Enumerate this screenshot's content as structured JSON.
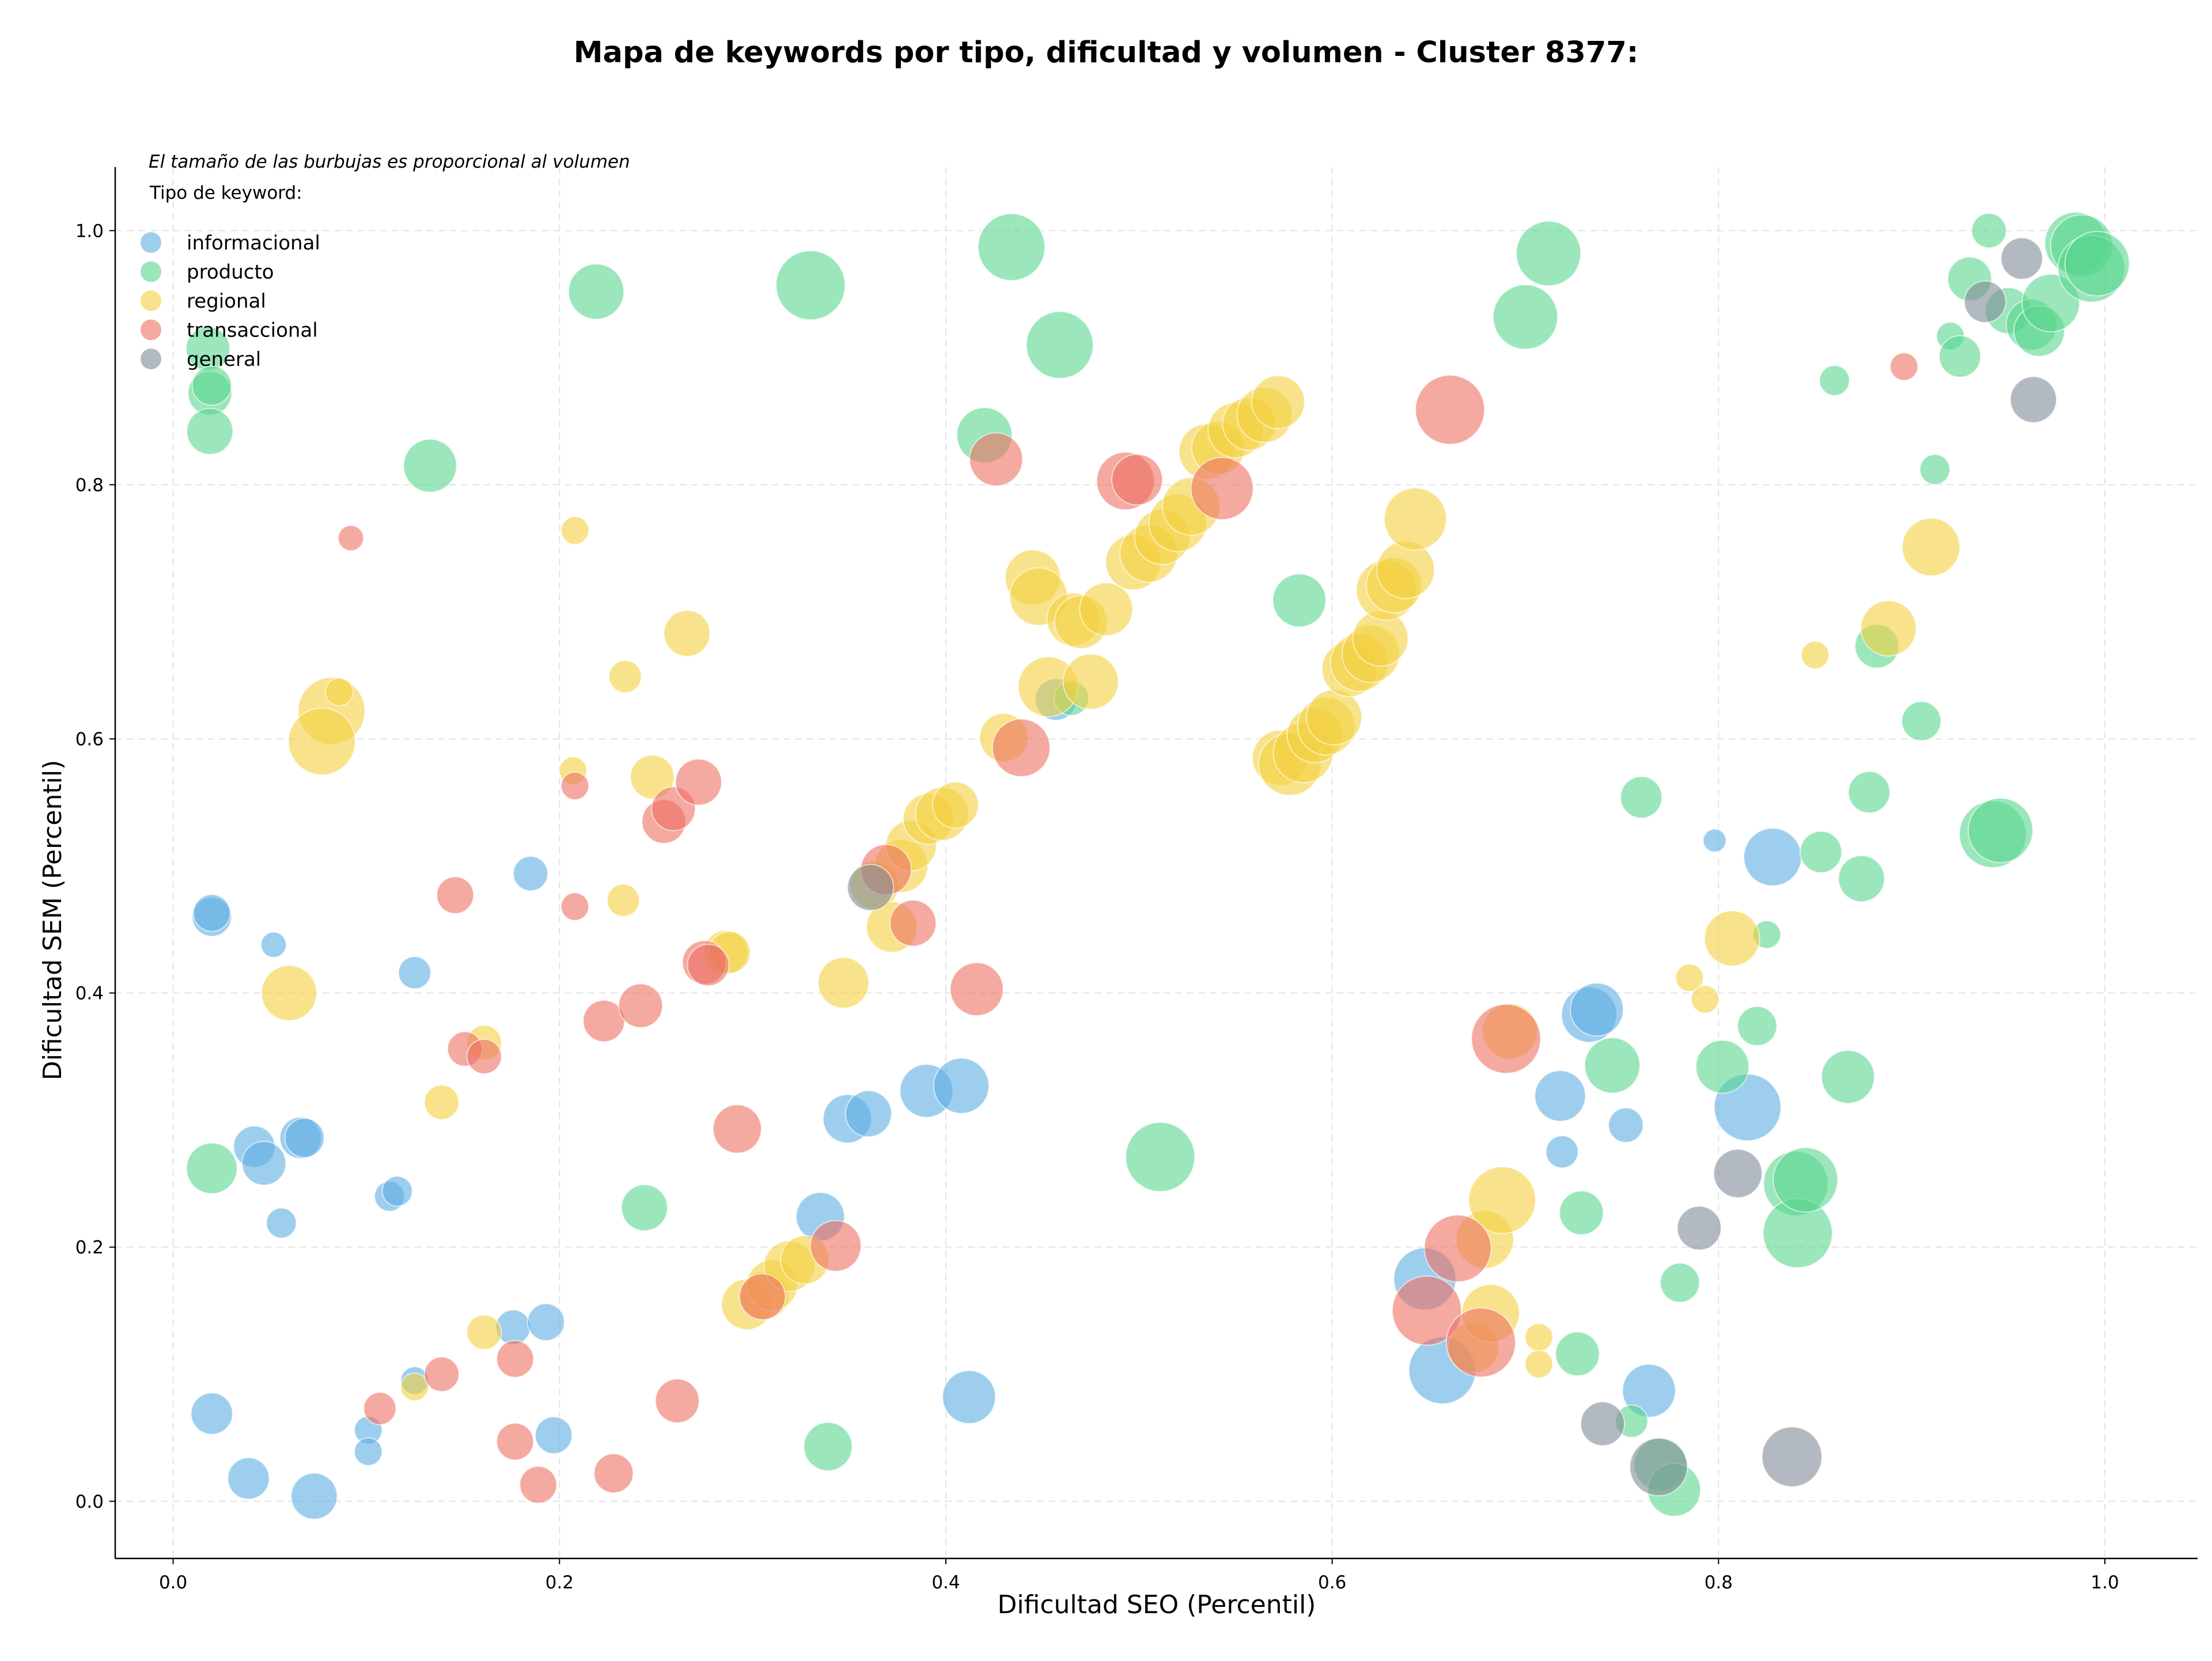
{
  "chart_data": {
    "type": "scatter",
    "title": "Mapa de keywords por tipo, dificultad y volumen - Cluster 8377:",
    "xlabel": "Dificultad SEO (Percentil)",
    "ylabel": "Dificultad SEM (Percentil)",
    "xlim": [
      -0.03,
      1.048
    ],
    "ylim": [
      -0.045,
      1.05
    ],
    "xticks": [
      "0.0",
      "0.2",
      "0.4",
      "0.6",
      "0.8",
      "1.0"
    ],
    "yticks": [
      "0.0",
      "0.2",
      "0.4",
      "0.6",
      "0.8",
      "1.0"
    ],
    "grid": true,
    "size_note": "El tamaño de las burbujas es proporcional al volumen",
    "legend_title": "Tipo de keyword:",
    "legend_position": "top-left",
    "series": [
      {
        "name": "informacional",
        "color": "#5DADE2",
        "points": [
          [
            0.02,
            0.46,
            34
          ],
          [
            0.02,
            0.463,
            32
          ],
          [
            0.052,
            0.438,
            22
          ],
          [
            0.125,
            0.416,
            28
          ],
          [
            0.185,
            0.494,
            30
          ],
          [
            0.042,
            0.279,
            36
          ],
          [
            0.047,
            0.266,
            38
          ],
          [
            0.066,
            0.286,
            36
          ],
          [
            0.068,
            0.286,
            34
          ],
          [
            0.056,
            0.219,
            26
          ],
          [
            0.112,
            0.24,
            26
          ],
          [
            0.116,
            0.244,
            26
          ],
          [
            0.02,
            0.069,
            36
          ],
          [
            0.039,
            0.018,
            36
          ],
          [
            0.073,
            0.004,
            40
          ],
          [
            0.101,
            0.056,
            24
          ],
          [
            0.101,
            0.039,
            24
          ],
          [
            0.125,
            0.095,
            24
          ],
          [
            0.176,
            0.137,
            30
          ],
          [
            0.193,
            0.141,
            32
          ],
          [
            0.197,
            0.052,
            32
          ],
          [
            0.335,
            0.224,
            42
          ],
          [
            0.349,
            0.301,
            42
          ],
          [
            0.36,
            0.305,
            40
          ],
          [
            0.39,
            0.323,
            46
          ],
          [
            0.408,
            0.327,
            48
          ],
          [
            0.412,
            0.082,
            46
          ],
          [
            0.457,
            0.631,
            36
          ],
          [
            0.648,
            0.175,
            54
          ],
          [
            0.657,
            0.103,
            58
          ],
          [
            0.718,
            0.319,
            44
          ],
          [
            0.719,
            0.275,
            28
          ],
          [
            0.733,
            0.383,
            48
          ],
          [
            0.737,
            0.387,
            46
          ],
          [
            0.752,
            0.296,
            30
          ],
          [
            0.764,
            0.087,
            46
          ],
          [
            0.798,
            0.52,
            20
          ],
          [
            0.815,
            0.31,
            58
          ],
          [
            0.828,
            0.507,
            50
          ]
        ]
      },
      {
        "name": "producto",
        "color": "#58D68D",
        "points": [
          [
            0.018,
            0.907,
            38
          ],
          [
            0.019,
            0.872,
            38
          ],
          [
            0.02,
            0.878,
            34
          ],
          [
            0.019,
            0.842,
            40
          ],
          [
            0.133,
            0.815,
            46
          ],
          [
            0.219,
            0.952,
            48
          ],
          [
            0.33,
            0.957,
            60
          ],
          [
            0.434,
            0.987,
            58
          ],
          [
            0.459,
            0.91,
            58
          ],
          [
            0.42,
            0.839,
            48
          ],
          [
            0.583,
            0.709,
            46
          ],
          [
            0.7,
            0.932,
            56
          ],
          [
            0.712,
            0.982,
            56
          ],
          [
            0.02,
            0.262,
            44
          ],
          [
            0.244,
            0.231,
            40
          ],
          [
            0.339,
            0.043,
            42
          ],
          [
            0.465,
            0.632,
            30
          ],
          [
            0.511,
            0.271,
            60
          ],
          [
            0.729,
            0.227,
            38
          ],
          [
            0.727,
            0.116,
            38
          ],
          [
            0.745,
            0.343,
            48
          ],
          [
            0.755,
            0.063,
            28
          ],
          [
            0.76,
            0.554,
            36
          ],
          [
            0.77,
            0.029,
            46
          ],
          [
            0.777,
            0.009,
            46
          ],
          [
            0.78,
            0.172,
            34
          ],
          [
            0.802,
            0.342,
            46
          ],
          [
            0.82,
            0.374,
            34
          ],
          [
            0.825,
            0.446,
            24
          ],
          [
            0.84,
            0.25,
            56
          ],
          [
            0.841,
            0.211,
            60
          ],
          [
            0.845,
            0.253,
            56
          ],
          [
            0.853,
            0.511,
            36
          ],
          [
            0.86,
            0.882,
            26
          ],
          [
            0.867,
            0.334,
            46
          ],
          [
            0.874,
            0.49,
            40
          ],
          [
            0.878,
            0.558,
            36
          ],
          [
            0.882,
            0.673,
            38
          ],
          [
            0.905,
            0.614,
            34
          ],
          [
            0.912,
            0.812,
            26
          ],
          [
            0.92,
            0.917,
            24
          ],
          [
            0.925,
            0.901,
            36
          ],
          [
            0.93,
            0.962,
            38
          ],
          [
            0.94,
            1.0,
            30
          ],
          [
            0.942,
            0.525,
            58
          ],
          [
            0.946,
            0.528,
            56
          ],
          [
            0.95,
            0.937,
            40
          ],
          [
            0.962,
            0.926,
            44
          ],
          [
            0.966,
            0.921,
            44
          ],
          [
            0.972,
            0.943,
            50
          ],
          [
            0.985,
            0.99,
            54
          ],
          [
            0.988,
            0.988,
            54
          ],
          [
            0.993,
            0.97,
            58
          ],
          [
            0.996,
            0.974,
            56
          ]
        ]
      },
      {
        "name": "regional",
        "color": "#F4D03F",
        "points": [
          [
            0.082,
            0.622,
            58
          ],
          [
            0.077,
            0.598,
            58
          ],
          [
            0.086,
            0.637,
            24
          ],
          [
            0.06,
            0.4,
            48
          ],
          [
            0.208,
            0.764,
            24
          ],
          [
            0.234,
            0.649,
            28
          ],
          [
            0.266,
            0.683,
            40
          ],
          [
            0.207,
            0.575,
            24
          ],
          [
            0.248,
            0.57,
            38
          ],
          [
            0.233,
            0.473,
            28
          ],
          [
            0.286,
            0.432,
            38
          ],
          [
            0.288,
            0.432,
            36
          ],
          [
            0.161,
            0.361,
            30
          ],
          [
            0.139,
            0.314,
            30
          ],
          [
            0.161,
            0.133,
            30
          ],
          [
            0.125,
            0.09,
            24
          ],
          [
            0.297,
            0.155,
            44
          ],
          [
            0.306,
            0.162,
            42
          ],
          [
            0.31,
            0.17,
            44
          ],
          [
            0.319,
            0.185,
            44
          ],
          [
            0.327,
            0.19,
            42
          ],
          [
            0.347,
            0.408,
            44
          ],
          [
            0.363,
            0.485,
            42
          ],
          [
            0.372,
            0.452,
            44
          ],
          [
            0.377,
            0.5,
            46
          ],
          [
            0.382,
            0.516,
            44
          ],
          [
            0.391,
            0.537,
            44
          ],
          [
            0.398,
            0.541,
            46
          ],
          [
            0.405,
            0.548,
            40
          ],
          [
            0.43,
            0.601,
            42
          ],
          [
            0.445,
            0.727,
            48
          ],
          [
            0.448,
            0.712,
            50
          ],
          [
            0.453,
            0.641,
            52
          ],
          [
            0.466,
            0.694,
            46
          ],
          [
            0.47,
            0.692,
            46
          ],
          [
            0.475,
            0.645,
            48
          ],
          [
            0.483,
            0.702,
            46
          ],
          [
            0.497,
            0.739,
            48
          ],
          [
            0.505,
            0.746,
            50
          ],
          [
            0.512,
            0.759,
            48
          ],
          [
            0.52,
            0.77,
            50
          ],
          [
            0.527,
            0.783,
            50
          ],
          [
            0.535,
            0.826,
            48
          ],
          [
            0.541,
            0.829,
            46
          ],
          [
            0.55,
            0.843,
            48
          ],
          [
            0.557,
            0.848,
            46
          ],
          [
            0.565,
            0.855,
            48
          ],
          [
            0.572,
            0.865,
            46
          ],
          [
            0.573,
            0.585,
            48
          ],
          [
            0.578,
            0.58,
            54
          ],
          [
            0.585,
            0.589,
            52
          ],
          [
            0.591,
            0.603,
            48
          ],
          [
            0.597,
            0.61,
            50
          ],
          [
            0.601,
            0.617,
            48
          ],
          [
            0.609,
            0.655,
            48
          ],
          [
            0.614,
            0.66,
            50
          ],
          [
            0.62,
            0.667,
            50
          ],
          [
            0.625,
            0.679,
            48
          ],
          [
            0.628,
            0.717,
            52
          ],
          [
            0.632,
            0.721,
            48
          ],
          [
            0.638,
            0.733,
            50
          ],
          [
            0.643,
            0.773,
            54
          ],
          [
            0.673,
            0.121,
            44
          ],
          [
            0.679,
            0.206,
            50
          ],
          [
            0.682,
            0.148,
            50
          ],
          [
            0.688,
            0.237,
            58
          ],
          [
            0.692,
            0.37,
            48
          ],
          [
            0.707,
            0.129,
            24
          ],
          [
            0.707,
            0.108,
            24
          ],
          [
            0.785,
            0.412,
            24
          ],
          [
            0.793,
            0.395,
            24
          ],
          [
            0.807,
            0.443,
            48
          ],
          [
            0.85,
            0.666,
            24
          ],
          [
            0.888,
            0.687,
            48
          ],
          [
            0.91,
            0.751,
            50
          ]
        ]
      },
      {
        "name": "transaccional",
        "color": "#EC7063",
        "points": [
          [
            0.092,
            0.758,
            22
          ],
          [
            0.146,
            0.477,
            32
          ],
          [
            0.151,
            0.356,
            30
          ],
          [
            0.161,
            0.35,
            30
          ],
          [
            0.208,
            0.563,
            24
          ],
          [
            0.208,
            0.468,
            24
          ],
          [
            0.223,
            0.378,
            36
          ],
          [
            0.242,
            0.39,
            38
          ],
          [
            0.254,
            0.535,
            38
          ],
          [
            0.259,
            0.545,
            38
          ],
          [
            0.272,
            0.566,
            40
          ],
          [
            0.275,
            0.424,
            38
          ],
          [
            0.277,
            0.422,
            36
          ],
          [
            0.107,
            0.073,
            28
          ],
          [
            0.139,
            0.1,
            30
          ],
          [
            0.177,
            0.112,
            32
          ],
          [
            0.177,
            0.047,
            32
          ],
          [
            0.189,
            0.013,
            32
          ],
          [
            0.228,
            0.022,
            34
          ],
          [
            0.261,
            0.079,
            38
          ],
          [
            0.292,
            0.293,
            42
          ],
          [
            0.305,
            0.161,
            40
          ],
          [
            0.343,
            0.201,
            44
          ],
          [
            0.369,
            0.497,
            44
          ],
          [
            0.383,
            0.455,
            40
          ],
          [
            0.416,
            0.403,
            46
          ],
          [
            0.426,
            0.82,
            46
          ],
          [
            0.439,
            0.593,
            50
          ],
          [
            0.493,
            0.803,
            50
          ],
          [
            0.499,
            0.804,
            44
          ],
          [
            0.543,
            0.797,
            54
          ],
          [
            0.661,
            0.859,
            60
          ],
          [
            0.649,
            0.15,
            60
          ],
          [
            0.665,
            0.199,
            58
          ],
          [
            0.677,
            0.125,
            60
          ],
          [
            0.69,
            0.364,
            60
          ],
          [
            0.896,
            0.893,
            24
          ]
        ]
      },
      {
        "name": "general",
        "color": "#808B96",
        "points": [
          [
            0.361,
            0.483,
            40
          ],
          [
            0.938,
            0.944,
            36
          ],
          [
            0.957,
            0.978,
            36
          ],
          [
            0.963,
            0.867,
            40
          ],
          [
            0.81,
            0.258,
            42
          ],
          [
            0.79,
            0.215,
            38
          ],
          [
            0.74,
            0.061,
            38
          ],
          [
            0.769,
            0.027,
            50
          ],
          [
            0.838,
            0.035,
            52
          ]
        ]
      }
    ]
  }
}
